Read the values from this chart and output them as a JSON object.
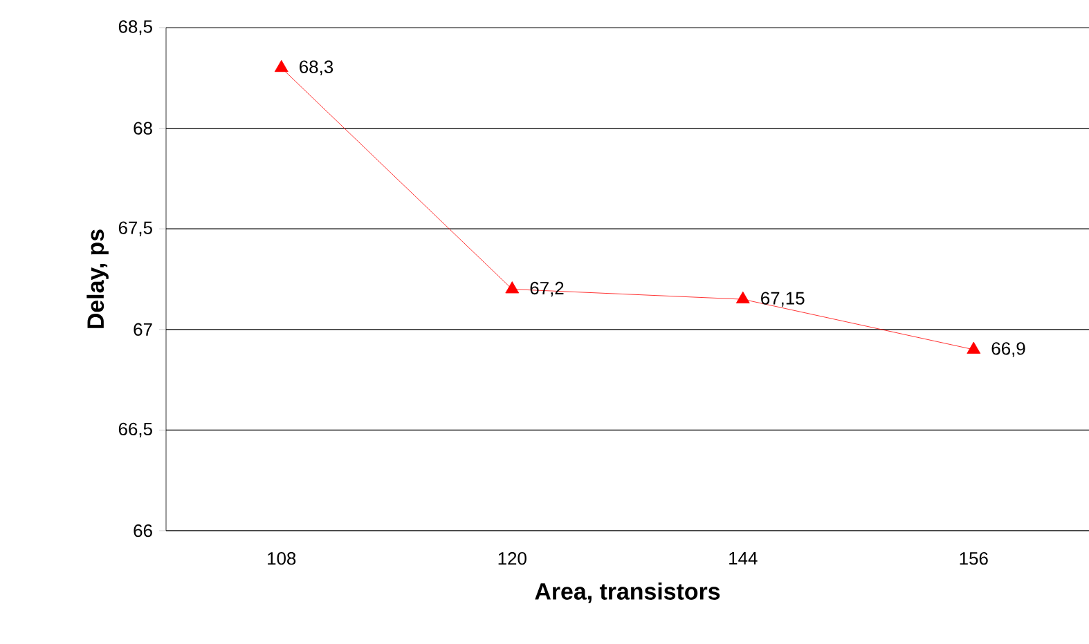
{
  "chart_data": {
    "type": "line",
    "xlabel": "Area, transistors",
    "ylabel": "Delay, ps",
    "categories": [
      "108",
      "120",
      "144",
      "156"
    ],
    "series": [
      {
        "color": "#ff0000",
        "values": [
          68.3,
          67.2,
          67.15,
          66.9
        ],
        "value_labels": [
          "68,3",
          "67,2",
          "67,15",
          "66,9"
        ]
      }
    ],
    "ylim": [
      66,
      68.5
    ],
    "yticks": [
      {
        "value": 66,
        "label": "66"
      },
      {
        "value": 66.5,
        "label": "66,5"
      },
      {
        "value": 67,
        "label": "67"
      },
      {
        "value": 67.5,
        "label": "67,5"
      },
      {
        "value": 68,
        "label": "68"
      },
      {
        "value": 68.5,
        "label": "68,5"
      }
    ],
    "grid": "y",
    "marker": "triangle",
    "line_style": "solid"
  }
}
